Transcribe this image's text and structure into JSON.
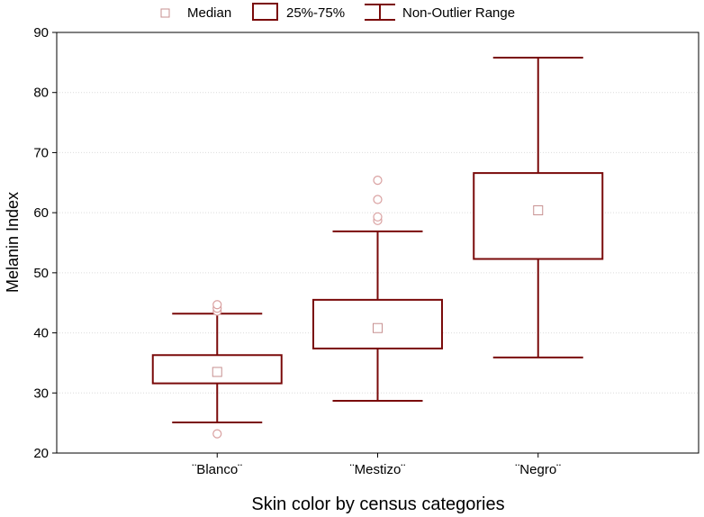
{
  "chart_data": {
    "type": "box",
    "title": "",
    "xlabel": "Skin color by census categories",
    "ylabel": "Melanin Index",
    "ylim": [
      20,
      90
    ],
    "yticks": [
      20,
      30,
      40,
      50,
      60,
      70,
      80,
      90
    ],
    "grid": true,
    "legend": {
      "placement": "top-center",
      "entries": [
        "Median",
        "25%-75%",
        "Non-Outlier Range"
      ]
    },
    "categories": [
      "¨Blanco¨",
      "¨Mestizo¨",
      "¨Negro¨"
    ],
    "boxes": [
      {
        "category": "¨Blanco¨",
        "min": 25.1,
        "q1": 31.6,
        "median": 33.5,
        "q3": 36.3,
        "max": 43.2,
        "outliers": [
          23.2,
          43.6,
          44.1,
          44.7
        ]
      },
      {
        "category": "¨Mestizo¨",
        "min": 28.7,
        "q1": 37.4,
        "median": 40.8,
        "q3": 45.5,
        "max": 56.9,
        "outliers": [
          58.7,
          59.3,
          62.2,
          65.4
        ]
      },
      {
        "category": "¨Negro¨",
        "min": 35.9,
        "q1": 52.3,
        "median": 60.4,
        "q3": 66.6,
        "max": 85.8,
        "outliers": []
      }
    ],
    "colors": {
      "box": "#7a0a0a",
      "outlier": "#d9a0a0",
      "median": "#c79090",
      "grid": "#dcdcdc"
    }
  }
}
